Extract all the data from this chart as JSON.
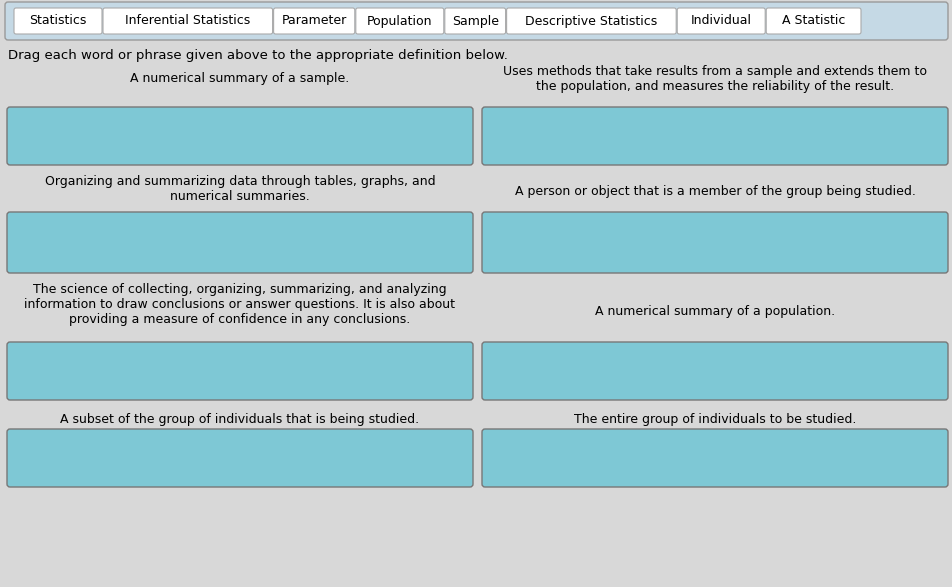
{
  "background_color": "#d8d8d8",
  "top_bar_bg": "#c5d9e5",
  "top_bar_border": "#999999",
  "chip_bg": "#ffffff",
  "chip_border": "#aaaaaa",
  "box_color": "#7ec8d5",
  "box_border": "#777777",
  "drag_words": [
    "Statistics",
    "Inferential Statistics",
    "Parameter",
    "Population",
    "Sample",
    "Descriptive Statistics",
    "Individual",
    "A Statistic"
  ],
  "instruction": "Drag each word or phrase given above to the appropriate definition below.",
  "left_labels": [
    "A numerical summary of a sample.",
    "Organizing and summarizing data through tables, graphs, and\nnumerical summaries.",
    "The science of collecting, organizing, summarizing, and analyzing\ninformation to draw conclusions or answer questions. It is also about\nproviding a measure of confidence in any conclusions.",
    "A subset of the group of individuals that is being studied."
  ],
  "right_labels": [
    "Uses methods that take results from a sample and extends them to\nthe population, and measures the reliability of the result.",
    "A person or object that is a member of the group being studied.",
    "A numerical summary of a population.",
    "The entire group of individuals to be studied."
  ],
  "label_fontsize": 9,
  "word_fontsize": 9,
  "instruction_fontsize": 9.5
}
